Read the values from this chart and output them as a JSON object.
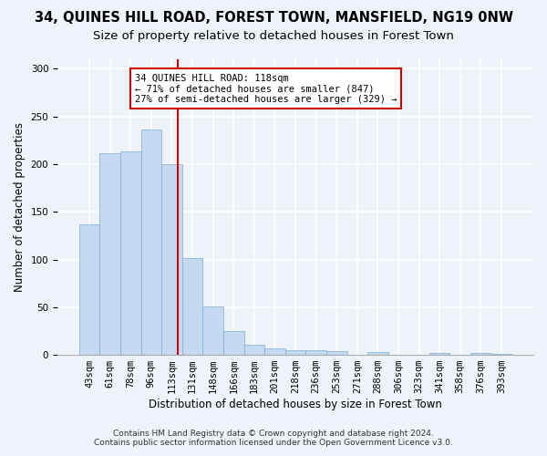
{
  "title": "34, QUINES HILL ROAD, FOREST TOWN, MANSFIELD, NG19 0NW",
  "subtitle": "Size of property relative to detached houses in Forest Town",
  "xlabel": "Distribution of detached houses by size in Forest Town",
  "ylabel": "Number of detached properties",
  "categories": [
    "43sqm",
    "61sqm",
    "78sqm",
    "96sqm",
    "113sqm",
    "131sqm",
    "148sqm",
    "166sqm",
    "183sqm",
    "201sqm",
    "218sqm",
    "236sqm",
    "253sqm",
    "271sqm",
    "288sqm",
    "306sqm",
    "323sqm",
    "341sqm",
    "358sqm",
    "376sqm",
    "393sqm"
  ],
  "values": [
    137,
    211,
    213,
    236,
    200,
    101,
    51,
    25,
    11,
    7,
    5,
    5,
    4,
    0,
    3,
    0,
    0,
    2,
    0,
    2,
    1
  ],
  "bar_color": "#c5d9f0",
  "bar_edge_color": "#7bafd4",
  "background_color": "#eef2f9",
  "grid_color": "#ffffff",
  "annotation_line1": "34 QUINES HILL ROAD: 118sqm",
  "annotation_line2": "← 71% of detached houses are smaller (847)",
  "annotation_line3": "27% of semi-detached houses are larger (329) →",
  "annotation_box_color": "#ffffff",
  "annotation_box_edge_color": "#cc0000",
  "vline_color": "#cc0000",
  "footer_line1": "Contains HM Land Registry data © Crown copyright and database right 2024.",
  "footer_line2": "Contains public sector information licensed under the Open Government Licence v3.0.",
  "title_fontsize": 10.5,
  "subtitle_fontsize": 9.5,
  "xlabel_fontsize": 8.5,
  "ylabel_fontsize": 8.5,
  "tick_fontsize": 7.5,
  "footer_fontsize": 6.5,
  "annotation_fontsize": 7.5,
  "ylim": [
    0,
    310
  ]
}
